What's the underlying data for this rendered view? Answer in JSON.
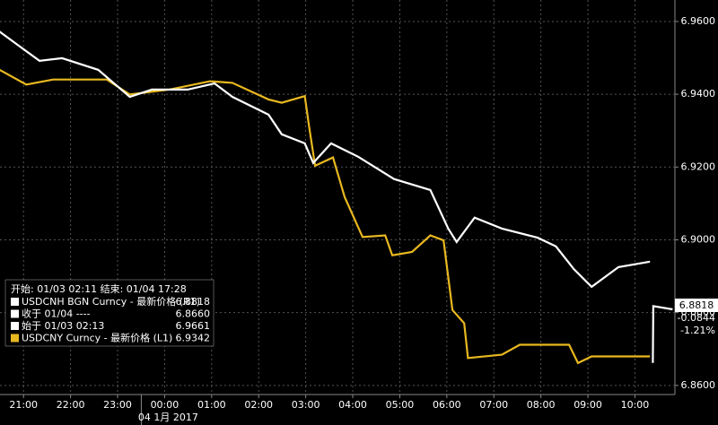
{
  "chart_data": {
    "type": "line",
    "x": [
      -0.52,
      -0.13,
      0.34,
      0.82,
      1.59,
      2.26,
      2.73,
      3.49,
      4.06,
      4.44,
      5.21,
      5.49,
      5.98,
      6.16,
      6.54,
      7.12,
      7.88,
      8.65,
      9.03,
      9.21,
      9.59,
      10.17,
      10.93,
      11.32,
      11.7,
      12.08,
      12.65,
      13.32,
      13.35,
      13.38,
      13.39,
      13.8
    ],
    "xlim": [
      -0.5,
      13.85
    ],
    "xticks": [
      {
        "value": 0,
        "label": "21:00"
      },
      {
        "value": 1,
        "label": "22:00"
      },
      {
        "value": 2,
        "label": "23:00"
      },
      {
        "value": 3,
        "label": "00:00"
      },
      {
        "value": 4,
        "label": "01:00"
      },
      {
        "value": 5,
        "label": "02:00"
      },
      {
        "value": 6,
        "label": "03:00"
      },
      {
        "value": 7,
        "label": "04:00"
      },
      {
        "value": 8,
        "label": "05:00"
      },
      {
        "value": 9,
        "label": "06:00"
      },
      {
        "value": 10,
        "label": "07:00"
      },
      {
        "value": 11,
        "label": "08:00"
      },
      {
        "value": 12,
        "label": "09:00"
      },
      {
        "value": 13,
        "label": "10:00"
      }
    ],
    "date_label": "04 1月 2017",
    "ylim": [
      6.932,
      6.9558
    ],
    "y2lim": [
      6.8575,
      6.9659
    ],
    "y2ticks": [
      {
        "value": 6.96,
        "label": "6.9600"
      },
      {
        "value": 6.94,
        "label": "6.9400"
      },
      {
        "value": 6.92,
        "label": "6.9200"
      },
      {
        "value": 6.9,
        "label": "6.9000"
      },
      {
        "value": 6.88,
        "label": "6.8800"
      },
      {
        "value": 6.86,
        "label": "6.8600"
      }
    ],
    "grid": true,
    "series": [
      {
        "name": "USDCNH BGN Curncy - 最新价格 (R1)",
        "color": "#ffffff",
        "axis": "y2",
        "values": [
          6.9573,
          6.9536,
          6.9492,
          6.9499,
          6.9467,
          6.9393,
          6.9413,
          6.9413,
          6.943,
          6.9393,
          6.9344,
          6.929,
          6.9265,
          6.9211,
          6.9265,
          6.9228,
          6.9167,
          6.9137,
          6.9031,
          6.8994,
          6.9061,
          6.9031,
          6.9006,
          6.8982,
          6.892,
          6.8871,
          6.8925,
          6.894,
          null,
          6.8662,
          6.8818,
          6.8809
        ]
      },
      {
        "name": "USDCNY Curncy - 最新价格 (L1)",
        "color": "#e8b820",
        "axis": "y",
        "x": [
          -0.52,
          0.06,
          0.63,
          1.77,
          2.26,
          3.11,
          3.97,
          4.44,
          5.21,
          5.49,
          5.98,
          6.07,
          6.2,
          6.58,
          6.83,
          7.21,
          7.69,
          7.84,
          8.26,
          8.65,
          8.93,
          9.12,
          9.37,
          9.45,
          10.17,
          10.55,
          11.6,
          11.79,
          12.08,
          13.32
        ],
        "values": [
          6.9516,
          6.9507,
          6.951,
          6.951,
          6.9501,
          6.9504,
          6.9509,
          6.9508,
          6.9498,
          6.9496,
          6.95,
          6.9482,
          6.9458,
          6.9463,
          6.9439,
          6.9415,
          6.9416,
          6.9404,
          6.9406,
          6.9416,
          6.9413,
          6.9371,
          6.9363,
          6.9342,
          6.9344,
          6.935,
          6.935,
          6.9339,
          6.9343,
          6.9343
        ]
      }
    ],
    "legend": {
      "header": "开始: 01/03 02:11 结束: 01/04 17:28",
      "rows": [
        {
          "label": "USDCNH BGN Curncy - 最新价格 (R1)",
          "value": "6.8818",
          "color": "#ffffff"
        },
        {
          "label": "收于 01/04 ----",
          "value": "6.8660",
          "color": "#ffffff"
        },
        {
          "label": "始于 01/03 02:13",
          "value": "6.9661",
          "color": "#ffffff"
        },
        {
          "label": "USDCNY Curncy - 最新价格 (L1)",
          "value": "6.9342",
          "color": "#e8b820"
        }
      ]
    },
    "last_label": "6.8818",
    "change": "-0.0844",
    "change_pct": "-1.21%"
  }
}
